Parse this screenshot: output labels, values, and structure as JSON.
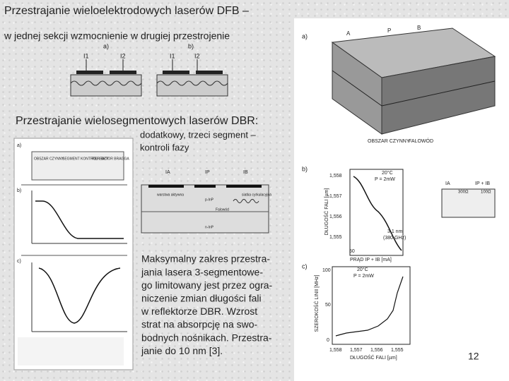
{
  "title": "Przestrajanie wieloelektrodowych laserów DFB –",
  "subtitle": "w jednej sekcji wzmocnienie w drugiej przestrojenie",
  "top_figure": {
    "a_label": "a)",
    "b_label": "b)",
    "a_currents": [
      "I1",
      "I2"
    ],
    "b_currents": [
      "I1",
      "I2"
    ]
  },
  "section2": {
    "title": "Przestrajanie wielosegmentowych laserów DBR:",
    "note": [
      "dodatkowy, trzeci segment –",
      "kontroli fazy"
    ]
  },
  "left_figure": {
    "labels": [
      "a)",
      "b)",
      "c)"
    ],
    "sections": [
      "OBSZAR CZYNNY",
      "SEGMENT KONTROLI FAZY",
      "REFLEKTOR BRAGGA"
    ]
  },
  "middle_figure": {
    "labels": [
      "warstwa aktywna",
      "p-InP",
      "siatka cyrkulacyjna",
      "Falowód",
      "n-InP"
    ],
    "currents": [
      "IA",
      "IP",
      "IB"
    ]
  },
  "paragraph": [
    "Maksymalny zakres przestra-",
    "jania lasera 3-segmentowe-",
    "go limitowany jest przez ogra-",
    "niczenie zmian długości fali",
    "w reflektorze DBR. Wzrost",
    "strat na absorpcję na swo-",
    "bodnych nośnikach. Przestra-",
    "janie do 10 nm [3]."
  ],
  "page_number": "12",
  "right_figure": {
    "a": {
      "label": "a)",
      "letters": [
        "A",
        "B",
        "P"
      ],
      "captions": [
        "OBSZAR CZYNNY",
        "FALOWÓD"
      ]
    },
    "b": {
      "label": "b)",
      "yticks": [
        "1,558",
        "1,557",
        "1,556",
        "1,555"
      ],
      "ylabel": "DŁUGOŚĆ FALI [µm]",
      "conditions": [
        "20°C",
        "P = 2mW"
      ],
      "annotation": [
        "3,1 nm",
        "(380 GHz)"
      ],
      "xtick": "50",
      "xlabel": "PRĄD IP + IB [mA]",
      "resistors": [
        "300Ω",
        "100Ω"
      ],
      "currents": [
        "IA",
        "IP + IB"
      ]
    },
    "c": {
      "label": "c)",
      "yticks": [
        "100",
        "50",
        "0"
      ],
      "ylabel": "SZEROKOŚĆ LINII [MHz]",
      "conditions": [
        "20°C",
        "P = 2mW"
      ],
      "xticks": [
        "1,558",
        "1,557",
        "1,556",
        "1,555"
      ],
      "xlabel": "DŁUGOŚĆ FALI [µm]"
    }
  }
}
